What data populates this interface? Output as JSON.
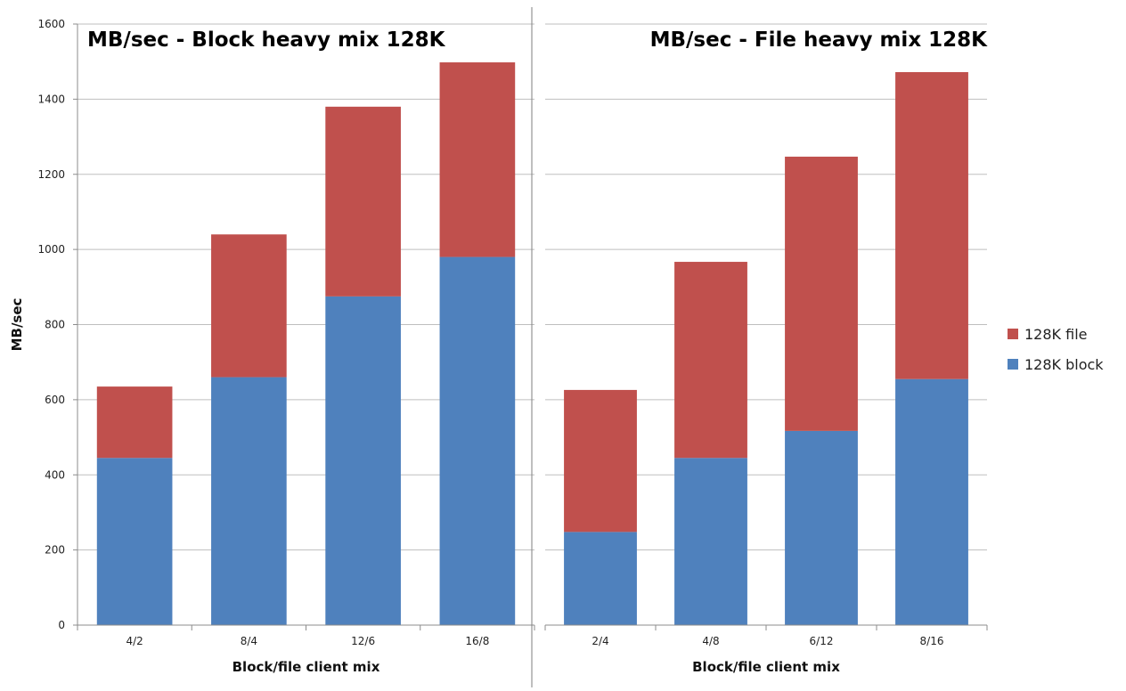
{
  "chart_data": [
    {
      "type": "bar",
      "stacked": true,
      "title": "MB/sec - Block heavy mix 128K",
      "xlabel": "Block/file client mix",
      "ylabel": "MB/sec",
      "ylim": [
        0,
        1600
      ],
      "yticks": [
        0,
        200,
        400,
        600,
        800,
        1000,
        1200,
        1400,
        1600
      ],
      "grid": true,
      "categories": [
        "4/2",
        "8/4",
        "12/6",
        "16/8"
      ],
      "series": [
        {
          "name": "128K block",
          "color": "#4f81bd",
          "values": [
            445,
            660,
            875,
            980
          ]
        },
        {
          "name": "128K file",
          "color": "#c0504d",
          "values": [
            190,
            380,
            505,
            518
          ]
        }
      ]
    },
    {
      "type": "bar",
      "stacked": true,
      "title": "MB/sec - File heavy mix 128K",
      "xlabel": "Block/file client mix",
      "ylabel": "",
      "ylim": [
        0,
        1600
      ],
      "grid": true,
      "categories": [
        "2/4",
        "4/8",
        "6/12",
        "8/16"
      ],
      "series": [
        {
          "name": "128K block",
          "color": "#4f81bd",
          "values": [
            248,
            445,
            517,
            655
          ]
        },
        {
          "name": "128K file",
          "color": "#c0504d",
          "values": [
            378,
            522,
            730,
            817
          ]
        }
      ]
    }
  ],
  "legend": {
    "placement": "right",
    "items": [
      {
        "label": "128K file",
        "color": "#c0504d"
      },
      {
        "label": "128K block",
        "color": "#4f81bd"
      }
    ]
  },
  "style": {
    "grid_color": "#bfbfbf",
    "axis_color": "#8c8c8c",
    "divider_color": "#7f7f7f"
  }
}
